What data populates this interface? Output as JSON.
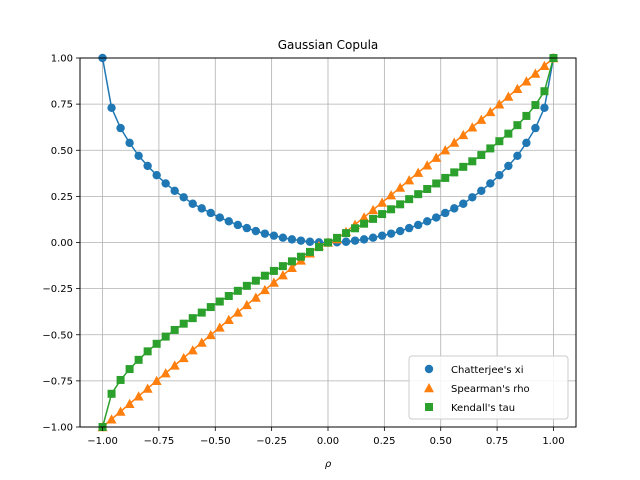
{
  "chart_data": {
    "type": "scatter",
    "title": "Gaussian Copula",
    "xlabel": "ρ",
    "ylabel": "",
    "xlim": [
      -1.1,
      1.1
    ],
    "ylim": [
      -1.0,
      1.0
    ],
    "grid": true,
    "legend_position": "lower-right",
    "x_ticks": [
      -1.0,
      -0.75,
      -0.5,
      -0.25,
      0.0,
      0.25,
      0.5,
      0.75,
      1.0
    ],
    "x_tick_labels": [
      "−1.00",
      "−0.75",
      "−0.50",
      "−0.25",
      "0.00",
      "0.25",
      "0.50",
      "0.75",
      "1.00"
    ],
    "y_ticks": [
      -1.0,
      -0.75,
      -0.5,
      -0.25,
      0.0,
      0.25,
      0.5,
      0.75,
      1.0
    ],
    "y_tick_labels": [
      "−1.00",
      "−0.75",
      "−0.50",
      "−0.25",
      "0.00",
      "0.25",
      "0.50",
      "0.75",
      "1.00"
    ],
    "x": [
      -1.0,
      -0.96,
      -0.92,
      -0.88,
      -0.84,
      -0.8,
      -0.76,
      -0.72,
      -0.68,
      -0.64,
      -0.6,
      -0.56,
      -0.52,
      -0.48,
      -0.44,
      -0.4,
      -0.36,
      -0.32,
      -0.28,
      -0.24,
      -0.2,
      -0.16,
      -0.12,
      -0.08,
      -0.04,
      0.0,
      0.04,
      0.08,
      0.12,
      0.16,
      0.2,
      0.24,
      0.28,
      0.32,
      0.36,
      0.4,
      0.44,
      0.48,
      0.52,
      0.56,
      0.6,
      0.64,
      0.68,
      0.72,
      0.76,
      0.8,
      0.84,
      0.88,
      0.92,
      0.96,
      1.0
    ],
    "series": [
      {
        "name": "Chatterjee's xi",
        "marker": "circle",
        "color": "#1f77b4",
        "values": [
          1.0,
          0.73,
          0.62,
          0.54,
          0.47,
          0.415,
          0.365,
          0.32,
          0.28,
          0.245,
          0.21,
          0.185,
          0.16,
          0.135,
          0.115,
          0.095,
          0.078,
          0.062,
          0.048,
          0.037,
          0.026,
          0.017,
          0.01,
          0.004,
          0.001,
          0.0,
          0.001,
          0.004,
          0.01,
          0.017,
          0.026,
          0.037,
          0.048,
          0.062,
          0.078,
          0.095,
          0.115,
          0.135,
          0.16,
          0.185,
          0.21,
          0.245,
          0.28,
          0.32,
          0.365,
          0.415,
          0.47,
          0.54,
          0.62,
          0.73,
          1.0
        ]
      },
      {
        "name": "Spearman's rho",
        "marker": "triangle",
        "color": "#ff7f0e",
        "values": [
          -1.0,
          -0.958,
          -0.916,
          -0.874,
          -0.833,
          -0.791,
          -0.749,
          -0.708,
          -0.666,
          -0.625,
          -0.583,
          -0.542,
          -0.501,
          -0.46,
          -0.419,
          -0.379,
          -0.338,
          -0.298,
          -0.257,
          -0.217,
          -0.177,
          -0.137,
          -0.097,
          -0.058,
          -0.018,
          0.0,
          0.018,
          0.058,
          0.097,
          0.137,
          0.177,
          0.217,
          0.257,
          0.298,
          0.338,
          0.379,
          0.419,
          0.46,
          0.501,
          0.542,
          0.583,
          0.625,
          0.666,
          0.708,
          0.749,
          0.791,
          0.833,
          0.874,
          0.916,
          0.958,
          1.0
        ]
      },
      {
        "name": "Kendall's tau",
        "marker": "square",
        "color": "#2ca02c",
        "values": [
          -1.0,
          -0.82,
          -0.745,
          -0.686,
          -0.636,
          -0.59,
          -0.549,
          -0.51,
          -0.474,
          -0.44,
          -0.41,
          -0.38,
          -0.35,
          -0.32,
          -0.29,
          -0.262,
          -0.235,
          -0.207,
          -0.18,
          -0.154,
          -0.128,
          -0.102,
          -0.077,
          -0.051,
          -0.025,
          0.0,
          0.025,
          0.051,
          0.077,
          0.102,
          0.128,
          0.154,
          0.18,
          0.207,
          0.235,
          0.262,
          0.29,
          0.32,
          0.35,
          0.38,
          0.41,
          0.44,
          0.474,
          0.51,
          0.549,
          0.59,
          0.636,
          0.686,
          0.745,
          0.82,
          1.0
        ]
      }
    ]
  }
}
